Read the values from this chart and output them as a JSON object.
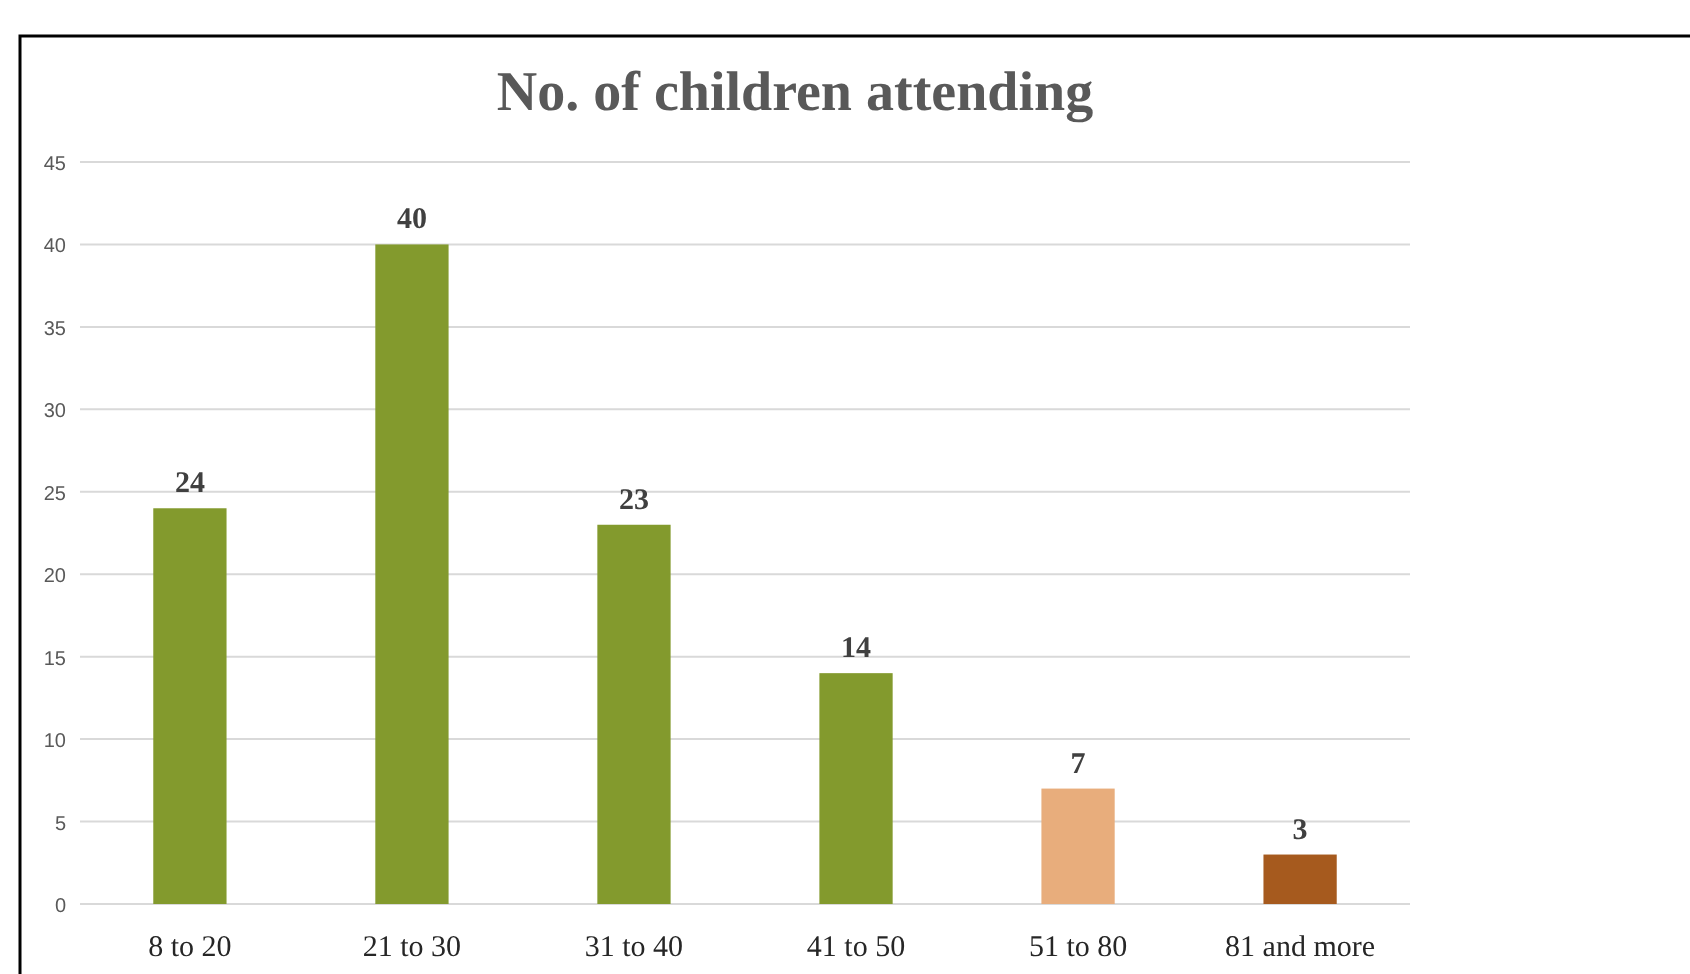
{
  "chart_data": {
    "type": "bar",
    "title": "No. of children attending",
    "categories": [
      "8 to 20",
      "21 to 30",
      "31 to 40",
      "41 to 50",
      "51 to 80",
      "81 and more"
    ],
    "values": [
      24,
      40,
      23,
      14,
      7,
      3
    ],
    "colors": [
      "#839a2d",
      "#839a2d",
      "#839a2d",
      "#839a2d",
      "#e8ad7c",
      "#a65a1e"
    ],
    "ylim": [
      0,
      45
    ],
    "yticks": [
      0,
      5,
      10,
      15,
      20,
      25,
      30,
      35,
      40,
      45
    ],
    "grid": "y",
    "data_labels": true
  }
}
